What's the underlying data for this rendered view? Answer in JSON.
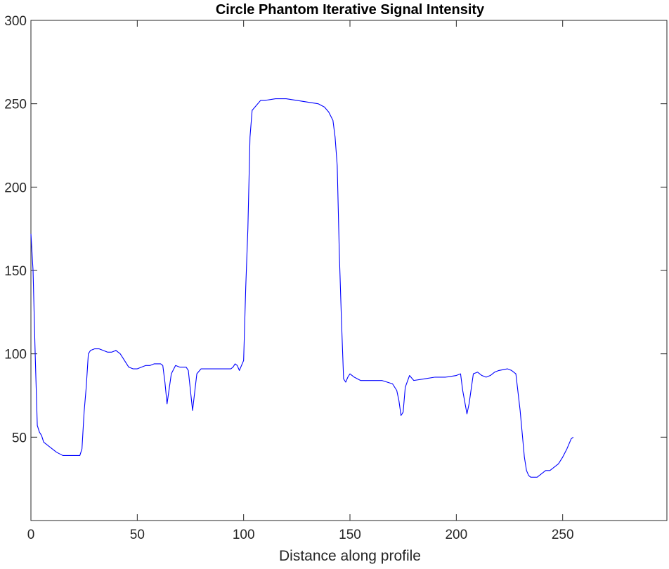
{
  "chart_data": {
    "type": "line",
    "title": "Circle Phantom Iterative Signal Intensity",
    "xlabel": "Distance along profile",
    "ylabel": "",
    "xlim": [
      0,
      299
    ],
    "ylim": [
      0,
      300
    ],
    "xticks": [
      0,
      50,
      100,
      150,
      200,
      250
    ],
    "yticks": [
      50,
      100,
      150,
      200,
      250,
      300
    ],
    "grid": false,
    "line_color": "#0000ff",
    "series": [
      {
        "name": "",
        "x": [
          0,
          1,
          2,
          3,
          4,
          5,
          6,
          8,
          10,
          12,
          15,
          18,
          20,
          23,
          24,
          25,
          26,
          27,
          28,
          30,
          32,
          34,
          36,
          38,
          40,
          42,
          44,
          46,
          48,
          50,
          52,
          54,
          56,
          58,
          60,
          61,
          62,
          63,
          64,
          66,
          68,
          70,
          72,
          73,
          74,
          75,
          76,
          78,
          80,
          85,
          90,
          94,
          95,
          96,
          97,
          98,
          100,
          101,
          102,
          103,
          104,
          106,
          108,
          110,
          115,
          120,
          125,
          130,
          135,
          138,
          140,
          142,
          143,
          144,
          145,
          146,
          147,
          148,
          149,
          150,
          152,
          155,
          160,
          165,
          170,
          172,
          173,
          174,
          175,
          176,
          178,
          180,
          185,
          190,
          195,
          200,
          202,
          203,
          204,
          205,
          206,
          208,
          210,
          212,
          214,
          216,
          218,
          220,
          224,
          226,
          228,
          230,
          232,
          233,
          234,
          235,
          236,
          238,
          240,
          242,
          244,
          246,
          248,
          250,
          252,
          254,
          255
        ],
        "y": [
          172,
          150,
          100,
          57,
          53,
          51,
          47,
          45,
          43,
          41,
          39,
          39,
          39,
          39,
          43,
          65,
          80,
          100,
          102,
          103,
          103,
          102,
          101,
          101,
          102,
          100,
          96,
          92,
          91,
          91,
          92,
          93,
          93,
          94,
          94,
          94,
          93,
          83,
          70,
          88,
          93,
          92,
          92,
          92,
          90,
          78,
          66,
          88,
          91,
          91,
          91,
          91,
          92,
          94,
          93,
          90,
          96,
          140,
          175,
          230,
          246,
          249,
          252,
          252,
          253,
          253,
          252,
          251,
          250,
          248,
          245,
          240,
          230,
          213,
          160,
          120,
          85,
          83,
          86,
          88,
          86,
          84,
          84,
          84,
          82,
          78,
          72,
          63,
          65,
          80,
          87,
          84,
          85,
          86,
          86,
          87,
          88,
          78,
          71,
          64,
          70,
          88,
          89,
          87,
          86,
          87,
          89,
          90,
          91,
          90,
          88,
          66,
          38,
          30,
          27,
          26,
          26,
          26,
          28,
          30,
          30,
          32,
          34,
          38,
          43,
          49,
          50
        ]
      }
    ]
  }
}
